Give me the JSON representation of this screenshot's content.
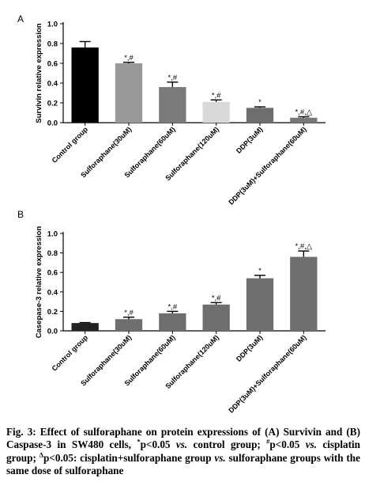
{
  "chart_data": [
    {
      "panel": "A",
      "type": "bar",
      "ylabel": "Survivin relative expression",
      "ylim": [
        0,
        1.0
      ],
      "yticks": [
        "0.0",
        "0.2",
        "0.4",
        "0.6",
        "0.8",
        "1.0"
      ],
      "categories": [
        "Control group",
        "Sulforaphane(30uM)",
        "Sulforaphane(60uM)",
        "Sulforaphane(120uM)",
        "DDP(3uM)",
        "DDP(3uM)+Sulforaphane(60uM)"
      ],
      "values": [
        0.76,
        0.6,
        0.36,
        0.21,
        0.15,
        0.05
      ],
      "errors": [
        0.06,
        0.01,
        0.05,
        0.02,
        0.01,
        0.01
      ],
      "annotations": [
        "",
        "*,#",
        "*,#",
        "*,#",
        "*",
        "*,#,△"
      ],
      "colors": [
        "#000000",
        "#999999",
        "#7a7a7a",
        "#d9d9d9",
        "#6e6e6e",
        "#777777"
      ]
    },
    {
      "panel": "B",
      "type": "bar",
      "ylabel": "Casepase-3 relative expression",
      "ylim": [
        0,
        1.0
      ],
      "yticks": [
        "0.0",
        "0.2",
        "0.4",
        "0.6",
        "0.8",
        "1.0"
      ],
      "categories": [
        "Control group",
        "Sulforaphane(30uM)",
        "Sulforaphane(60uM)",
        "Sulforaphane(120uM)",
        "DDP(3uM)",
        "DDP(3uM)+Sulforaphane(60uM)"
      ],
      "values": [
        0.08,
        0.12,
        0.18,
        0.27,
        0.54,
        0.76
      ],
      "errors": [
        0.005,
        0.02,
        0.02,
        0.02,
        0.03,
        0.06
      ],
      "annotations": [
        "",
        "*,#",
        "*,#",
        "*,#",
        "*",
        "*,#,△"
      ],
      "colors": [
        "#222222",
        "#6e6e6e",
        "#6e6e6e",
        "#6e6e6e",
        "#6e6e6e",
        "#6e6e6e"
      ]
    }
  ],
  "caption": {
    "lead": "Fig. 3: Effect of sulforaphane on protein expressions of (A) Survivin and (B) Caspase-3 in SW480 cells, ",
    "s1_sym": "*",
    "s1_text": "p<0.05 ",
    "vs1": "vs.",
    "s1_tail": " control group; ",
    "s2_sym": "#",
    "s2_text": "p<0.05 ",
    "vs2": "vs.",
    "s2_tail": " cisplatin group; ",
    "s3_sym": "Δ",
    "s3_text": "p<0.05: cisplatin+sulforaphane group ",
    "vs3": "vs.",
    "s3_tail": " sulforaphane groups with the same dose of sulforaphane"
  }
}
